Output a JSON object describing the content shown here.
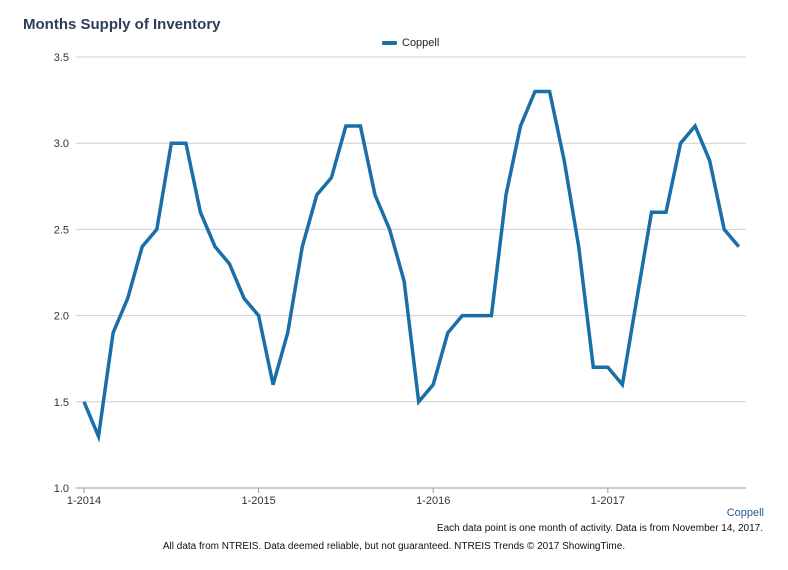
{
  "chart_data": {
    "type": "line",
    "title": "Months Supply of Inventory",
    "xlabel": "",
    "ylabel": "",
    "ylim": [
      1.0,
      3.5
    ],
    "yticks": [
      "1.0",
      "1.5",
      "2.0",
      "2.5",
      "3.0",
      "3.5"
    ],
    "xticks": [
      {
        "label": "1-2014",
        "index": 0
      },
      {
        "label": "1-2015",
        "index": 12
      },
      {
        "label": "1-2016",
        "index": 24
      },
      {
        "label": "1-2017",
        "index": 36
      }
    ],
    "grid": true,
    "legend_position": "top-center",
    "series": [
      {
        "name": "Coppell",
        "color": "#1b6fa8",
        "values": [
          1.5,
          1.3,
          1.9,
          2.1,
          2.4,
          2.5,
          3.0,
          3.0,
          2.6,
          2.4,
          2.3,
          2.1,
          2.0,
          1.6,
          1.9,
          2.4,
          2.7,
          2.8,
          3.1,
          3.1,
          2.7,
          2.5,
          2.2,
          1.5,
          1.6,
          1.9,
          2.0,
          2.0,
          2.0,
          2.7,
          3.1,
          3.3,
          3.3,
          2.9,
          2.4,
          1.7,
          1.7,
          1.6,
          2.1,
          2.6,
          2.6,
          3.0,
          3.1,
          2.9,
          2.5,
          2.4
        ]
      }
    ]
  },
  "location_label": "Coppell",
  "note": "Each data point is one month of activity. Data is from November 14, 2017.",
  "disclaimer": "All data from NTREIS. Data deemed reliable, but not guaranteed. NTREIS Trends © 2017 ShowingTime."
}
